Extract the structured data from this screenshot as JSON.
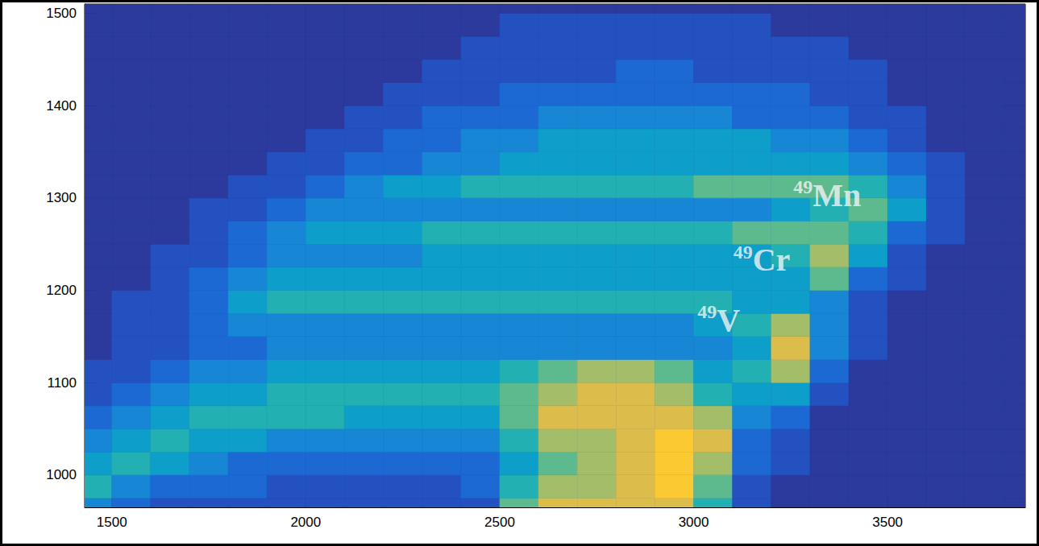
{
  "chart_data": {
    "type": "heatmap",
    "xlim": [
      1430,
      3855
    ],
    "ylim": [
      965,
      1510
    ],
    "xticks": [
      1500,
      2000,
      2500,
      3000,
      3500
    ],
    "yticks": [
      1000,
      1100,
      1200,
      1300,
      1400,
      1500
    ],
    "grid": false,
    "x_bins": [
      1400,
      1500,
      1600,
      1700,
      1800,
      1900,
      2000,
      2100,
      2200,
      2300,
      2400,
      2500,
      2600,
      2700,
      2800,
      2900,
      3000,
      3100,
      3200,
      3300,
      3400,
      3500,
      3600,
      3700,
      3800,
      3900
    ],
    "y_bins": [
      950,
      975,
      1000,
      1025,
      1050,
      1075,
      1100,
      1125,
      1150,
      1175,
      1200,
      1225,
      1250,
      1275,
      1300,
      1325,
      1350,
      1375,
      1400,
      1425,
      1450,
      1475,
      1500,
      1525
    ],
    "zlim": [
      0,
      10
    ],
    "cells": [
      [
        3,
        2,
        1,
        1,
        1,
        1,
        1,
        1,
        1,
        1,
        1,
        6,
        8,
        8,
        8,
        8,
        5,
        1,
        0,
        0,
        0,
        0,
        0,
        0,
        0
      ],
      [
        5,
        3,
        2,
        2,
        2,
        1,
        1,
        1,
        1,
        1,
        2,
        5,
        7,
        7,
        8,
        9,
        6,
        1,
        0,
        0,
        0,
        0,
        0,
        0,
        0
      ],
      [
        4,
        5,
        4,
        3,
        2,
        2,
        2,
        2,
        2,
        2,
        2,
        4,
        6,
        7,
        8,
        9,
        7,
        2,
        1,
        0,
        0,
        0,
        0,
        0,
        0
      ],
      [
        3,
        4,
        5,
        4,
        4,
        3,
        3,
        3,
        3,
        3,
        3,
        5,
        7,
        7,
        8,
        9,
        8,
        2,
        1,
        0,
        0,
        0,
        0,
        0,
        0
      ],
      [
        2,
        3,
        4,
        5,
        5,
        5,
        5,
        4,
        4,
        4,
        4,
        6,
        8,
        8,
        8,
        8,
        7,
        3,
        2,
        0,
        0,
        0,
        0,
        0,
        0
      ],
      [
        1,
        2,
        3,
        4,
        4,
        5,
        5,
        5,
        5,
        5,
        5,
        6,
        7,
        8,
        8,
        7,
        5,
        4,
        4,
        1,
        0,
        0,
        0,
        0,
        0
      ],
      [
        1,
        1,
        2,
        3,
        3,
        4,
        4,
        4,
        4,
        4,
        4,
        5,
        6,
        7,
        7,
        6,
        4,
        5,
        7,
        2,
        0,
        0,
        0,
        0,
        0
      ],
      [
        0,
        1,
        1,
        2,
        2,
        3,
        3,
        3,
        3,
        3,
        3,
        3,
        3,
        3,
        3,
        3,
        3,
        4,
        8,
        3,
        1,
        0,
        0,
        0,
        0
      ],
      [
        0,
        1,
        1,
        2,
        3,
        3,
        3,
        3,
        3,
        3,
        3,
        3,
        3,
        3,
        3,
        3,
        4,
        5,
        7,
        3,
        1,
        0,
        0,
        0,
        0
      ],
      [
        0,
        1,
        1,
        2,
        4,
        5,
        5,
        5,
        5,
        5,
        5,
        5,
        5,
        5,
        5,
        5,
        5,
        4,
        4,
        3,
        1,
        0,
        0,
        0,
        0
      ],
      [
        0,
        0,
        1,
        2,
        3,
        4,
        4,
        4,
        4,
        4,
        4,
        4,
        4,
        4,
        4,
        4,
        4,
        4,
        4,
        6,
        2,
        1,
        0,
        0,
        0
      ],
      [
        0,
        0,
        1,
        1,
        2,
        3,
        3,
        3,
        3,
        4,
        4,
        4,
        4,
        4,
        4,
        4,
        4,
        4,
        5,
        7,
        4,
        1,
        0,
        0,
        0
      ],
      [
        0,
        0,
        0,
        1,
        2,
        3,
        4,
        4,
        4,
        5,
        5,
        5,
        5,
        5,
        5,
        5,
        5,
        6,
        6,
        6,
        5,
        2,
        1,
        0,
        0
      ],
      [
        0,
        0,
        0,
        1,
        1,
        2,
        3,
        3,
        3,
        3,
        3,
        3,
        3,
        3,
        3,
        3,
        3,
        3,
        4,
        5,
        6,
        4,
        1,
        0,
        0
      ],
      [
        0,
        0,
        0,
        0,
        1,
        1,
        2,
        3,
        4,
        4,
        5,
        5,
        5,
        5,
        5,
        5,
        6,
        6,
        6,
        6,
        5,
        3,
        1,
        0,
        0
      ],
      [
        0,
        0,
        0,
        0,
        0,
        1,
        1,
        2,
        2,
        3,
        3,
        4,
        4,
        4,
        4,
        4,
        4,
        4,
        4,
        4,
        3,
        2,
        1,
        0,
        0
      ],
      [
        0,
        0,
        0,
        0,
        0,
        0,
        1,
        1,
        2,
        2,
        3,
        3,
        4,
        4,
        4,
        4,
        4,
        4,
        3,
        3,
        2,
        1,
        0,
        0,
        0
      ],
      [
        0,
        0,
        0,
        0,
        0,
        0,
        0,
        1,
        1,
        2,
        2,
        2,
        3,
        3,
        3,
        3,
        3,
        2,
        2,
        2,
        1,
        1,
        0,
        0,
        0
      ],
      [
        0,
        0,
        0,
        0,
        0,
        0,
        0,
        0,
        1,
        1,
        1,
        2,
        2,
        2,
        2,
        2,
        2,
        2,
        2,
        1,
        1,
        0,
        0,
        0,
        0
      ],
      [
        0,
        0,
        0,
        0,
        0,
        0,
        0,
        0,
        0,
        1,
        1,
        1,
        1,
        1,
        2,
        2,
        1,
        1,
        1,
        1,
        1,
        0,
        0,
        0,
        0
      ],
      [
        0,
        0,
        0,
        0,
        0,
        0,
        0,
        0,
        0,
        0,
        1,
        1,
        1,
        1,
        1,
        1,
        1,
        1,
        1,
        1,
        0,
        0,
        0,
        0,
        0
      ],
      [
        0,
        0,
        0,
        0,
        0,
        0,
        0,
        0,
        0,
        0,
        0,
        1,
        1,
        1,
        1,
        1,
        1,
        1,
        0,
        0,
        0,
        0,
        0,
        0,
        0
      ],
      [
        0,
        0,
        0,
        0,
        0,
        0,
        0,
        0,
        0,
        0,
        0,
        0,
        0,
        0,
        0,
        0,
        0,
        0,
        0,
        0,
        0,
        0,
        0,
        0,
        0
      ]
    ],
    "annotations": [
      {
        "text": "49Mn",
        "x": 3257,
        "y": 1303
      },
      {
        "text": "49Cr",
        "x": 3102,
        "y": 1233
      },
      {
        "text": "49V",
        "x": 3010,
        "y": 1168
      }
    ]
  }
}
